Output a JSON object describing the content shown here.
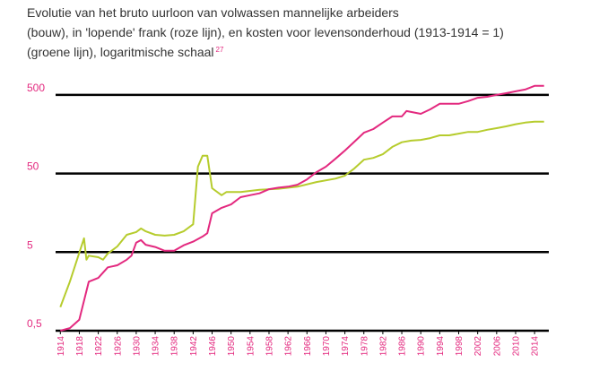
{
  "chart_data": {
    "type": "line",
    "title_lines": [
      "Evolutie van het bruto uurloon van volwassen mannelijke arbeiders",
      "(bouw), in 'lopende' frank (roze lijn), en kosten voor levensonderhoud (1913-1914 = 1)",
      "(groene lijn), logaritmische schaal"
    ],
    "title_note": "27",
    "log_y": true,
    "ylim": [
      0.5,
      1000
    ],
    "yticks": [
      {
        "value": 0.5,
        "label": "0,5"
      },
      5,
      50,
      500
    ],
    "xlim": [
      1913,
      2017
    ],
    "xticks": [
      1914,
      1918,
      1922,
      1926,
      1930,
      1934,
      1938,
      1942,
      1946,
      1950,
      1954,
      1958,
      1962,
      1966,
      1970,
      1974,
      1978,
      1982,
      1986,
      1990,
      1994,
      1998,
      2002,
      2006,
      2010,
      2014
    ],
    "grid": true,
    "series": [
      {
        "color": "#b6cc2d",
        "x": [
          1914,
          1916,
          1918,
          1919,
          1919.5,
          1920,
          1922,
          1923,
          1924,
          1926,
          1928,
          1930,
          1931,
          1932,
          1934,
          1936,
          1938,
          1940,
          1942,
          1943,
          1944,
          1945,
          1946,
          1948,
          1949,
          1952,
          1956,
          1960,
          1964,
          1968,
          1972,
          1974,
          1976,
          1978,
          1980,
          1982,
          1984,
          1986,
          1988,
          1990,
          1992,
          1994,
          1996,
          1998,
          2000,
          2002,
          2004,
          2006,
          2008,
          2010,
          2012,
          2014,
          2016
        ],
        "values": [
          1.0,
          2.1,
          4.9,
          7.5,
          4.0,
          4.5,
          4.3,
          4.0,
          4.8,
          5.9,
          8.3,
          9.0,
          10,
          9.2,
          8.3,
          8.1,
          8.3,
          9.2,
          11.3,
          61,
          84,
          84,
          32.5,
          26.5,
          29,
          29,
          31,
          32,
          34,
          39,
          43,
          47,
          58,
          75,
          79,
          88,
          109,
          125,
          131,
          134,
          141,
          153,
          153,
          161,
          169,
          169,
          180,
          189,
          199,
          212,
          222,
          228,
          228
        ]
      },
      {
        "color": "#e3297f",
        "x": [
          1914,
          1916,
          1918,
          1920,
          1922,
          1924,
          1926,
          1928,
          1929,
          1930,
          1931,
          1932,
          1934,
          1936,
          1938,
          1940,
          1942,
          1944,
          1945,
          1946,
          1948,
          1950,
          1952,
          1954,
          1956,
          1958,
          1960,
          1962,
          1964,
          1966,
          1968,
          1970,
          1972,
          1974,
          1976,
          1978,
          1980,
          1982,
          1984,
          1986,
          1987,
          1990,
          1992,
          1994,
          1996,
          1998,
          2000,
          2002,
          2004,
          2006,
          2008,
          2010,
          2012,
          2014,
          2016
        ],
        "values": [
          0.5,
          0.54,
          0.69,
          2.1,
          2.35,
          3.2,
          3.4,
          4.0,
          4.5,
          6.6,
          7.1,
          6.2,
          5.8,
          5.2,
          5.2,
          6.1,
          6.8,
          7.9,
          8.7,
          15.6,
          18.3,
          20.2,
          25,
          26.5,
          28,
          31.6,
          33,
          34,
          36,
          42,
          52,
          61,
          77,
          98,
          127,
          165,
          184,
          222,
          266,
          266,
          312,
          287,
          328,
          386,
          386,
          386,
          417,
          460,
          473,
          500,
          526,
          555,
          586,
          651,
          651
        ]
      }
    ]
  }
}
